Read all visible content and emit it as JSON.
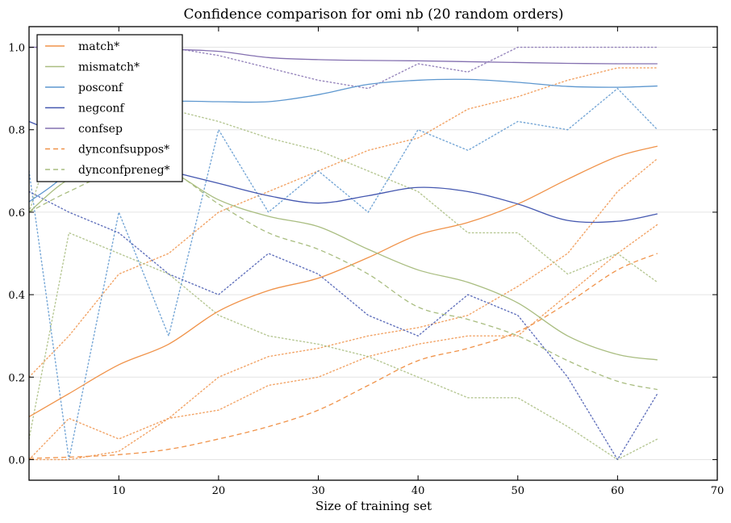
{
  "chart_data": {
    "type": "line",
    "title": "Confidence comparison for omi nb (20 random orders)",
    "xlabel": "Size of training set",
    "ylabel": "",
    "xlim": [
      1,
      70
    ],
    "ylim": [
      -0.05,
      1.05
    ],
    "xticks": [
      10,
      20,
      30,
      40,
      50,
      60,
      70
    ],
    "yticks": [
      0.0,
      0.2,
      0.4,
      0.6,
      0.8,
      1.0
    ],
    "ytick_labels": [
      "0.0",
      "0.2",
      "0.4",
      "0.6",
      "0.8",
      "1.0"
    ],
    "grid": "horizontal",
    "legend_position": "top-left",
    "x": [
      1,
      5,
      10,
      15,
      20,
      25,
      30,
      35,
      40,
      45,
      50,
      55,
      60,
      64
    ],
    "series": [
      {
        "name": "match*",
        "color": "#f0934a",
        "style": "solid",
        "values": [
          0.104,
          0.16,
          0.23,
          0.28,
          0.36,
          0.41,
          0.44,
          0.49,
          0.545,
          0.575,
          0.62,
          0.68,
          0.735,
          0.76
        ]
      },
      {
        "name": "mismatch*",
        "color": "#a9bd80",
        "style": "solid",
        "values": [
          0.6,
          0.68,
          0.72,
          0.7,
          0.63,
          0.59,
          0.565,
          0.51,
          0.46,
          0.43,
          0.38,
          0.3,
          0.255,
          0.242
        ]
      },
      {
        "name": "posconf",
        "color": "#5d97cf",
        "style": "solid",
        "values": [
          0.625,
          0.7,
          0.85,
          0.868,
          0.868,
          0.868,
          0.885,
          0.91,
          0.92,
          0.922,
          0.915,
          0.905,
          0.903,
          0.906
        ]
      },
      {
        "name": "negconf",
        "color": "#4558b0",
        "style": "solid",
        "values": [
          0.82,
          0.78,
          0.73,
          0.7,
          0.67,
          0.64,
          0.622,
          0.64,
          0.66,
          0.65,
          0.62,
          0.58,
          0.578,
          0.596
        ]
      },
      {
        "name": "confsep",
        "color": "#8470b0",
        "style": "solid",
        "values": [
          1.0,
          1.0,
          0.998,
          0.995,
          0.99,
          0.975,
          0.97,
          0.968,
          0.967,
          0.965,
          0.963,
          0.961,
          0.96,
          0.96
        ]
      },
      {
        "name": "dynconfsuppos*",
        "color": "#f0934a",
        "style": "dashed",
        "values": [
          0.003,
          0.006,
          0.012,
          0.025,
          0.05,
          0.08,
          0.12,
          0.18,
          0.24,
          0.27,
          0.31,
          0.38,
          0.46,
          0.5
        ]
      },
      {
        "name": "dynconfpreneg*",
        "color": "#a9bd80",
        "style": "dashed",
        "values": [
          0.6,
          0.65,
          0.7,
          0.7,
          0.62,
          0.55,
          0.51,
          0.45,
          0.37,
          0.34,
          0.3,
          0.24,
          0.19,
          0.17
        ]
      }
    ],
    "range_series": [
      {
        "of": "match*",
        "color": "#f0934a",
        "values": [
          0.2,
          0.3,
          0.45,
          0.5,
          0.6,
          0.65,
          0.7,
          0.75,
          0.78,
          0.85,
          0.88,
          0.92,
          0.95,
          0.95
        ]
      },
      {
        "of": "match*",
        "color": "#f0934a",
        "values": [
          0.0,
          0.0,
          0.02,
          0.1,
          0.12,
          0.18,
          0.2,
          0.25,
          0.28,
          0.3,
          0.3,
          0.4,
          0.5,
          0.57
        ]
      },
      {
        "of": "dynconfsuppos*",
        "color": "#f0934a",
        "values": [
          0.0,
          0.1,
          0.05,
          0.1,
          0.2,
          0.25,
          0.27,
          0.3,
          0.32,
          0.35,
          0.42,
          0.5,
          0.65,
          0.73
        ]
      },
      {
        "of": "mismatch*",
        "color": "#a9bd80",
        "values": [
          0.05,
          0.55,
          0.5,
          0.45,
          0.35,
          0.3,
          0.28,
          0.25,
          0.2,
          0.15,
          0.15,
          0.08,
          0.0,
          0.05
        ]
      },
      {
        "of": "mismatch*",
        "color": "#a9bd80",
        "values": [
          0.6,
          0.9,
          0.95,
          0.85,
          0.82,
          0.78,
          0.75,
          0.7,
          0.65,
          0.55,
          0.55,
          0.45,
          0.5,
          0.43
        ]
      },
      {
        "of": "posconf",
        "color": "#5d97cf",
        "values": [
          0.7,
          0.0,
          0.6,
          0.3,
          0.8,
          0.6,
          0.7,
          0.6,
          0.8,
          0.75,
          0.82,
          0.8,
          0.9,
          0.8
        ]
      },
      {
        "of": "negconf",
        "color": "#4558b0",
        "values": [
          0.65,
          0.6,
          0.55,
          0.45,
          0.4,
          0.5,
          0.45,
          0.35,
          0.3,
          0.4,
          0.35,
          0.2,
          0.0,
          0.16
        ]
      },
      {
        "of": "confsep",
        "color": "#8470b0",
        "values": [
          1.0,
          1.0,
          1.0,
          1.0,
          0.98,
          0.95,
          0.92,
          0.9,
          0.96,
          0.94,
          1.0,
          1.0,
          1.0,
          1.0
        ]
      }
    ]
  }
}
